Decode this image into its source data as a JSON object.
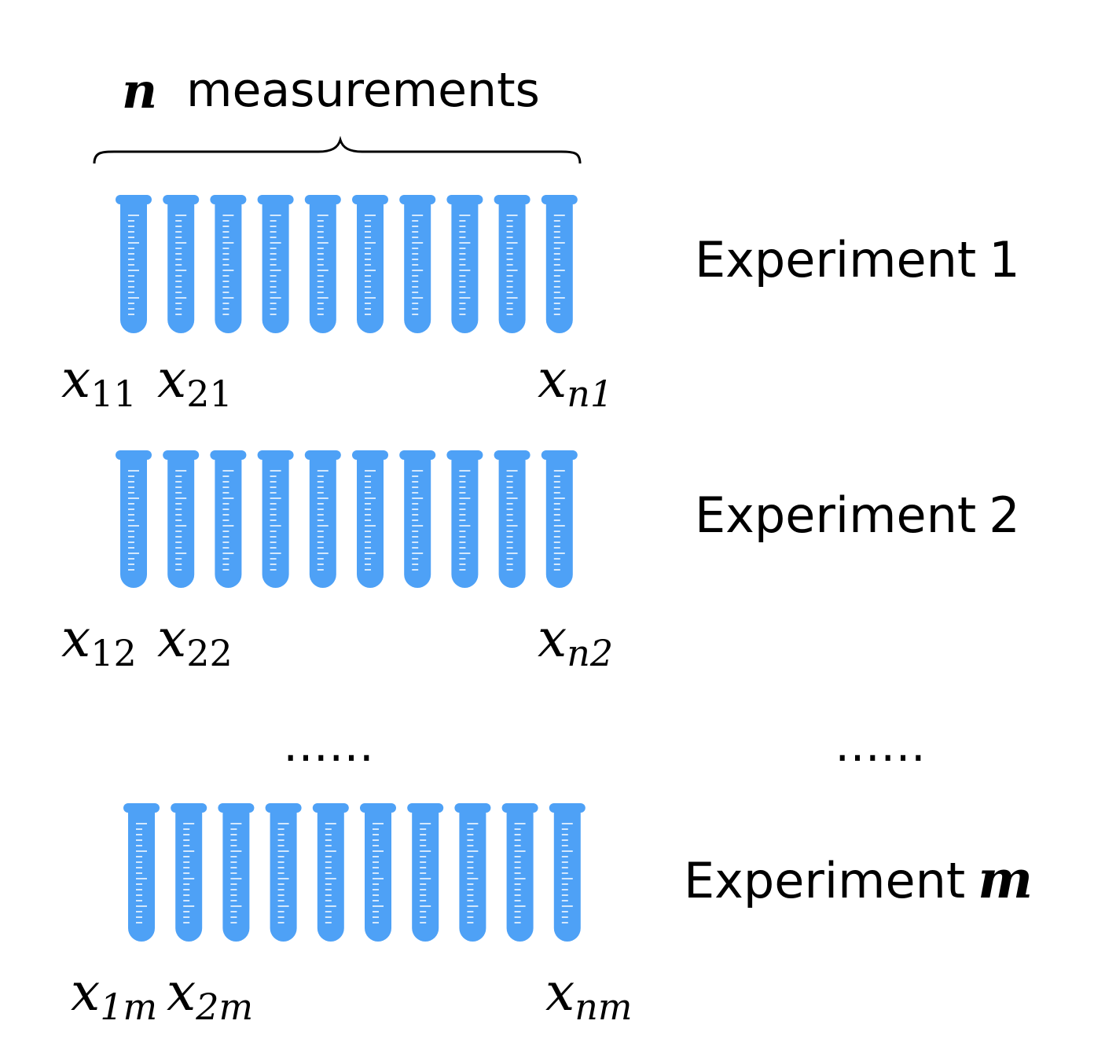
{
  "header": {
    "n_symbol": "n",
    "measurements_label": "measurements"
  },
  "tube_color": "#4ea1f6",
  "tubes_per_row": 10,
  "rows": [
    {
      "experiment_label": "Experiment",
      "experiment_index": "1",
      "index_is_symbol": false,
      "labels": [
        {
          "sub": "11"
        },
        {
          "sub": "21"
        },
        {
          "sub": "n1"
        }
      ]
    },
    {
      "experiment_label": "Experiment",
      "experiment_index": "2",
      "index_is_symbol": false,
      "labels": [
        {
          "sub": "12"
        },
        {
          "sub": "22"
        },
        {
          "sub": "n2"
        }
      ]
    },
    {
      "experiment_label": "Experiment",
      "experiment_index": "m",
      "index_is_symbol": true,
      "labels": [
        {
          "sub": "1m"
        },
        {
          "sub": "2m"
        },
        {
          "sub": "nm"
        }
      ]
    }
  ],
  "variable_symbol": "x",
  "ellipsis": "……"
}
